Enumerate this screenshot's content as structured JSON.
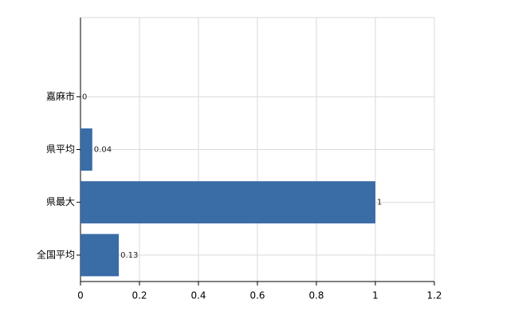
{
  "chart_data": {
    "type": "bar",
    "orientation": "horizontal",
    "categories": [
      null,
      "嘉麻市",
      "県平均",
      "県最大",
      "全国平均"
    ],
    "values": [
      null,
      0,
      0.04,
      1,
      0.13
    ],
    "color": "#3a6ca6",
    "xlim": [
      0,
      1.2
    ],
    "xticks": [
      0,
      0.2,
      0.4,
      0.6,
      0.8,
      1,
      1.2
    ],
    "grid": true
  }
}
